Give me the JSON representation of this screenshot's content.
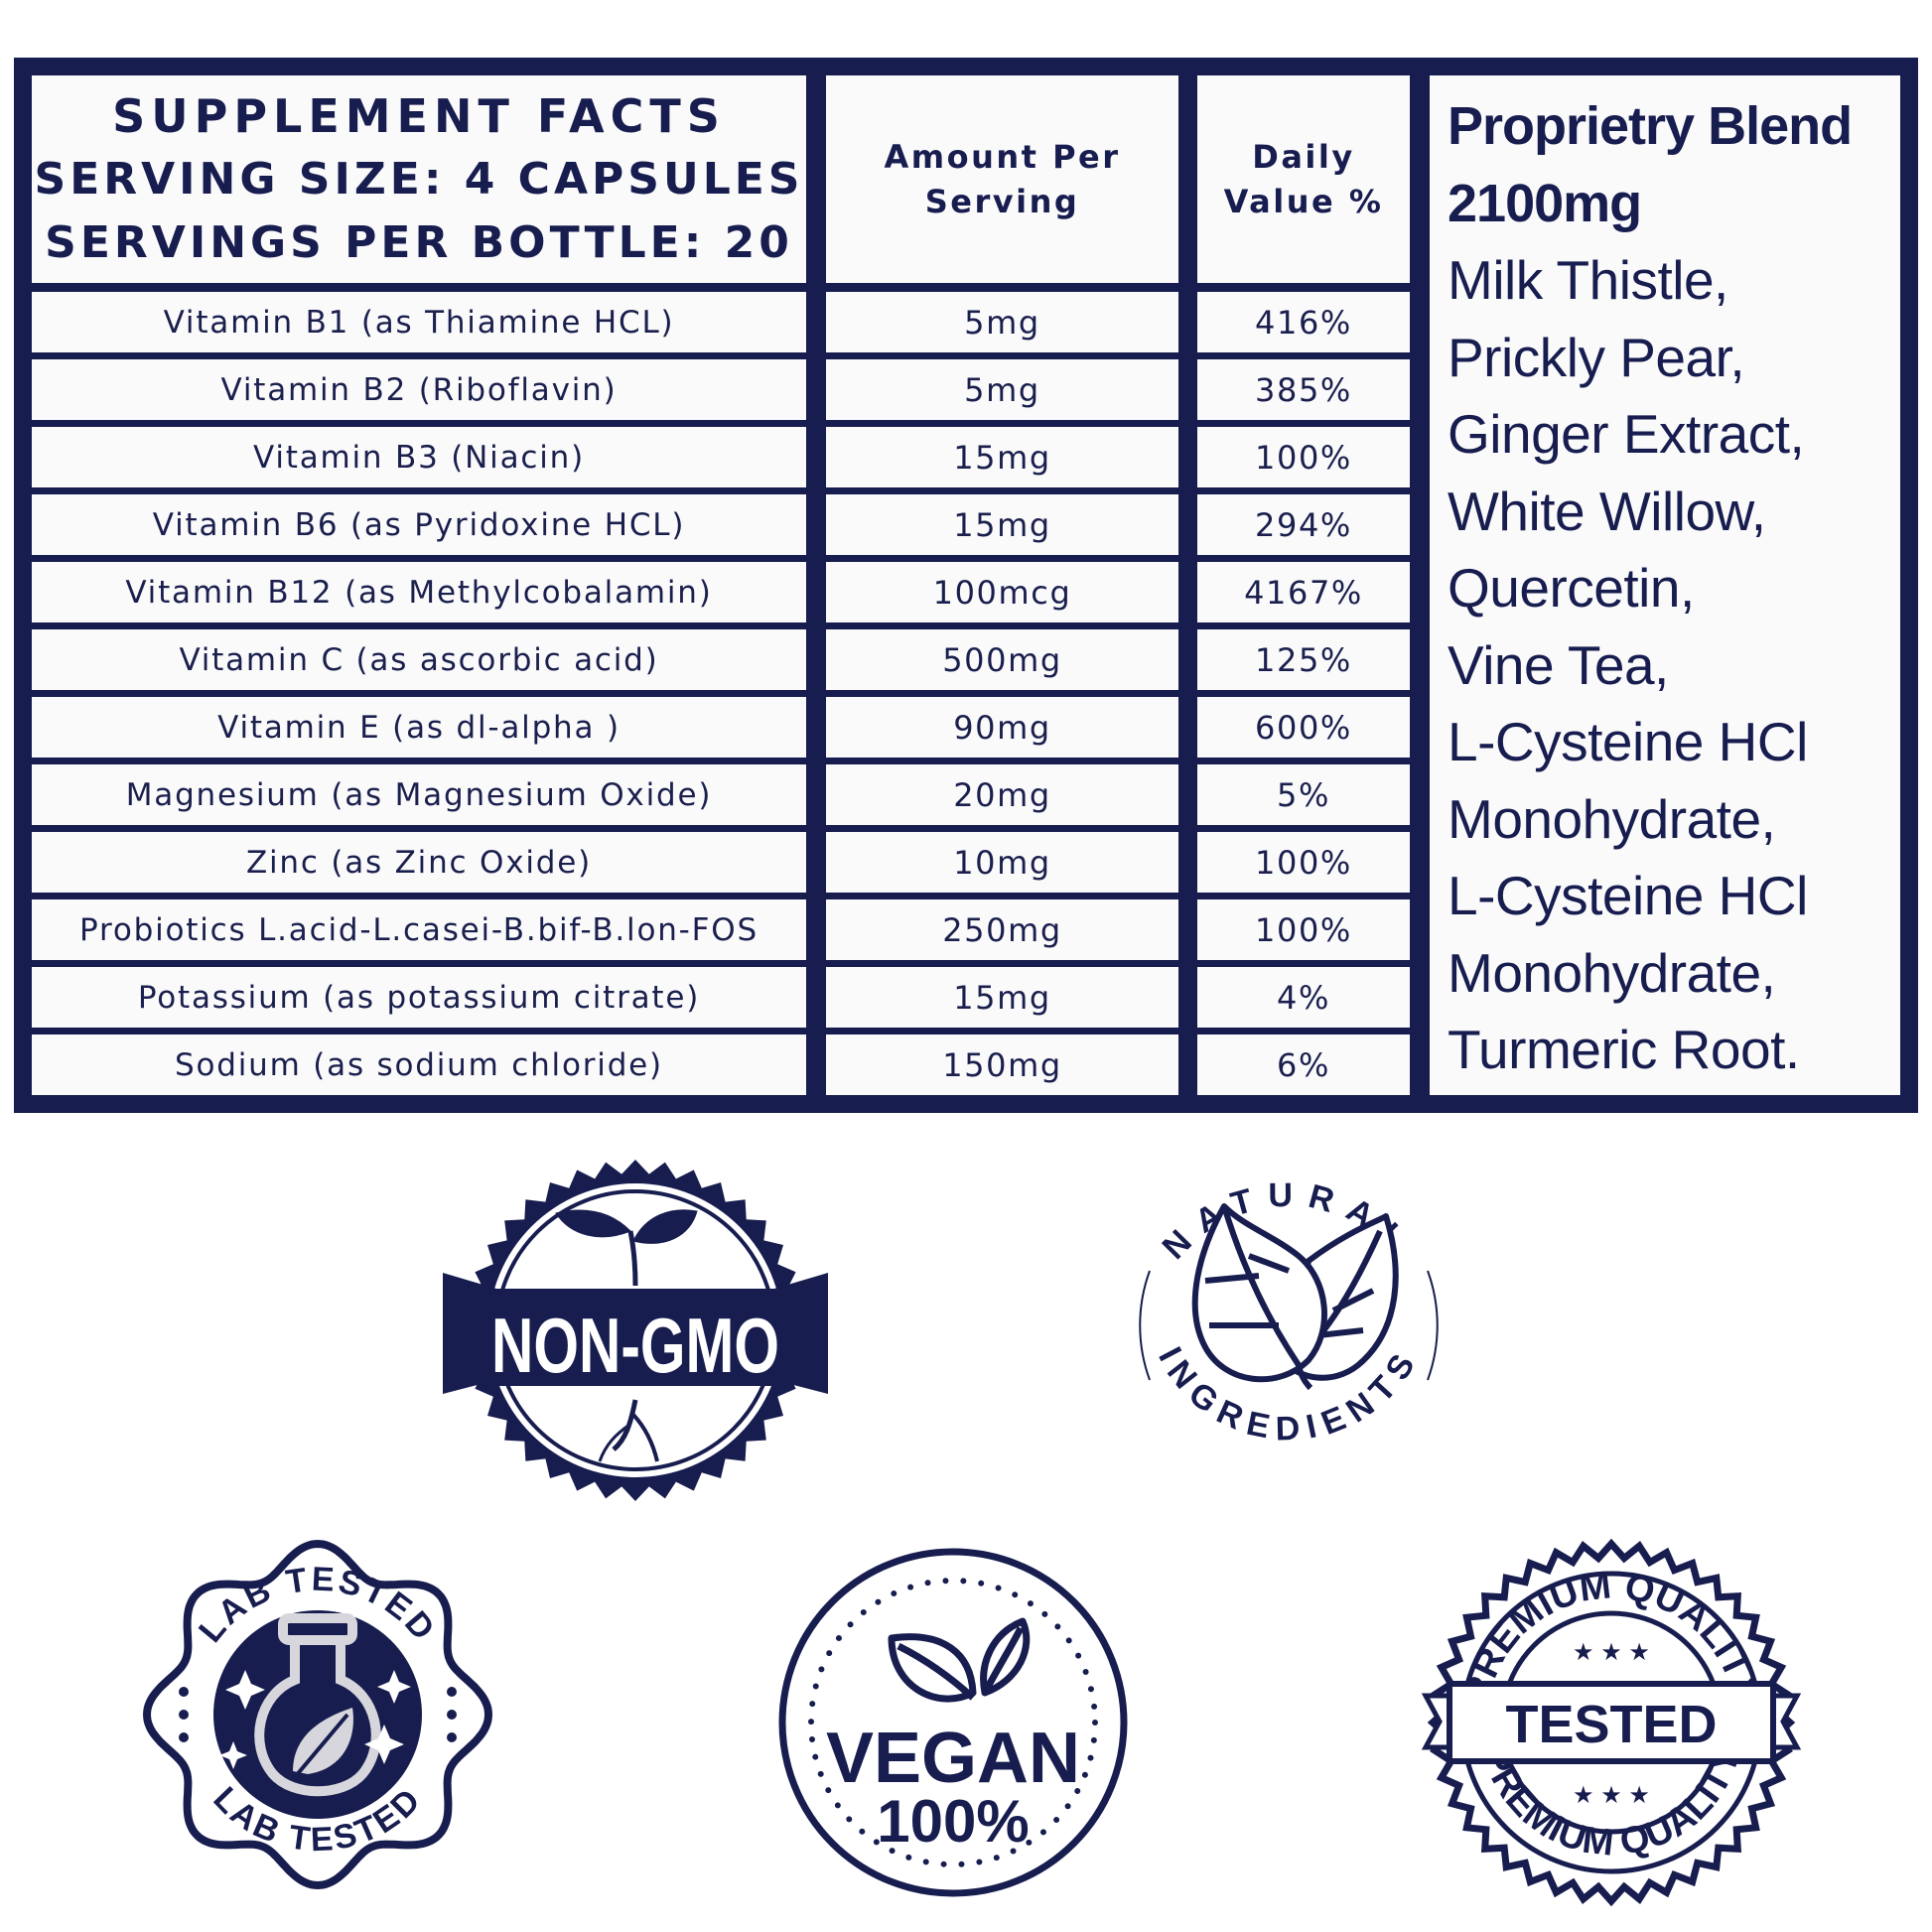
{
  "facts": {
    "title_line1": "SUPPLEMENT FACTS",
    "title_line2": "SERVING SIZE: 4 CAPSULES",
    "title_line3": "SERVINGS PER BOTTLE: 20",
    "amount_header_line1": "Amount Per",
    "amount_header_line2": "Serving",
    "dv_header_line1": "Daily",
    "dv_header_line2": "Value %",
    "rows": [
      {
        "name": "Vitamin B1 (as Thiamine HCL)",
        "amount": "5mg",
        "dv": "416%"
      },
      {
        "name": "Vitamin B2 (Riboflavin)",
        "amount": "5mg",
        "dv": "385%"
      },
      {
        "name": "Vitamin B3 (Niacin)",
        "amount": "15mg",
        "dv": "100%"
      },
      {
        "name": "Vitamin B6 (as Pyridoxine HCL)",
        "amount": "15mg",
        "dv": "294%"
      },
      {
        "name": "Vitamin B12 (as Methylcobalamin)",
        "amount": "100mcg",
        "dv": "4167%"
      },
      {
        "name": "Vitamin C (as ascorbic acid)",
        "amount": "500mg",
        "dv": "125%"
      },
      {
        "name": "Vitamin E (as dl-alpha )",
        "amount": "90mg",
        "dv": "600%"
      },
      {
        "name": "Magnesium (as Magnesium Oxide)",
        "amount": "20mg",
        "dv": "5%"
      },
      {
        "name": "Zinc (as Zinc Oxide)",
        "amount": "10mg",
        "dv": "100%"
      },
      {
        "name": "Probiotics  L.acid-L.casei-B.bif-B.lon-FOS",
        "amount": "250mg",
        "dv": "100%"
      },
      {
        "name": "Potassium (as potassium citrate)",
        "amount": "15mg",
        "dv": "4%"
      },
      {
        "name": "Sodium (as sodium chloride)",
        "amount": "150mg",
        "dv": "6%"
      }
    ]
  },
  "blend": {
    "title_line1": "Proprietry Blend",
    "title_line2": "2100mg",
    "ingredients": [
      "Milk Thistle,",
      "Prickly Pear,",
      "Ginger Extract,",
      "White Willow,",
      "Quercetin,",
      "Vine Tea,",
      "L-Cysteine HCl",
      "Monohydrate,",
      "L-Cysteine HCl",
      "Monohydrate,",
      "Turmeric Root."
    ]
  },
  "badges": {
    "non_gmo": "NON-GMO",
    "natural_top": "NATURAL",
    "natural_bottom": "INGREDIENTS",
    "lab_top": "LAB TESTED",
    "lab_bottom": "LAB TESTED",
    "vegan_line1": "VEGAN",
    "vegan_line2": "100%",
    "premium_top": "PREMIUM QUALITY",
    "premium_center": "TESTED",
    "premium_bottom": "PREMIUM QUALITY"
  },
  "colors": {
    "navy": "#181d4f",
    "white": "#ffffff"
  }
}
